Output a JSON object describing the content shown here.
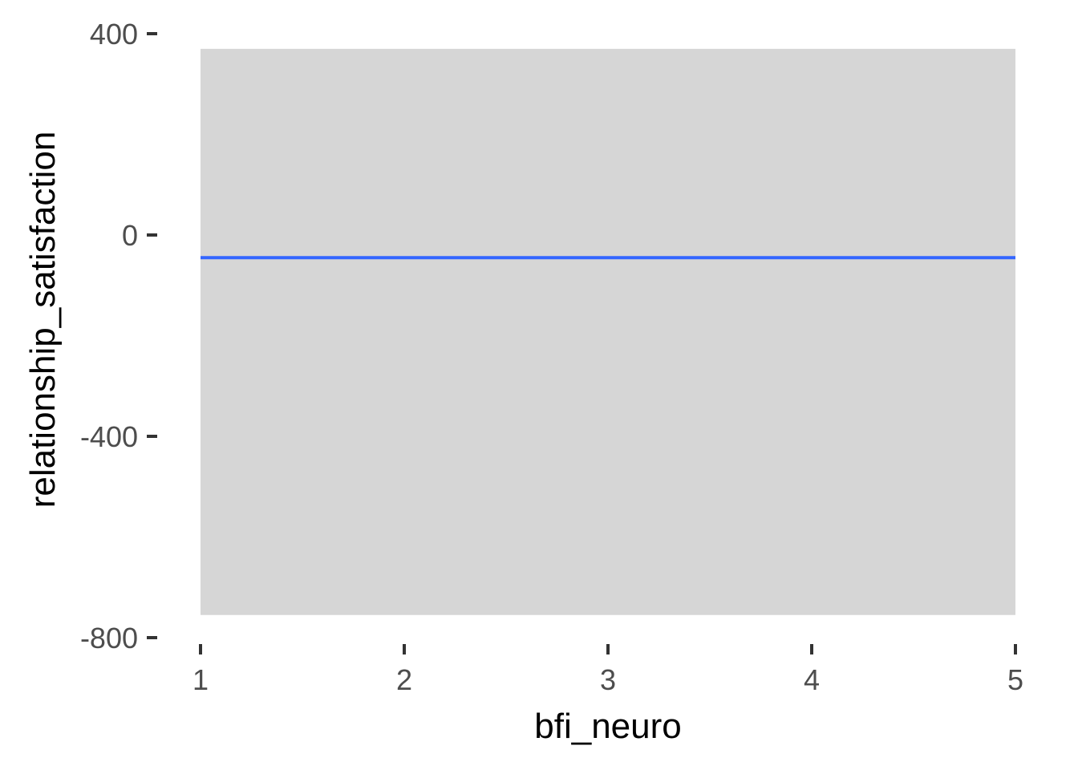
{
  "chart_data": {
    "type": "line",
    "title": "",
    "xlabel": "bfi_neuro",
    "ylabel": "relationship_satisfaction",
    "xlim": [
      1,
      5
    ],
    "ylim": [
      -800,
      400
    ],
    "x_ticks": [
      1,
      2,
      3,
      4,
      5
    ],
    "x_tick_labels": [
      "1",
      "2",
      "3",
      "4",
      "5"
    ],
    "y_ticks": [
      400,
      0,
      -400,
      -800
    ],
    "y_tick_labels": [
      "400",
      "0",
      "-400",
      "-800"
    ],
    "ribbon": {
      "x": [
        1,
        5
      ],
      "lower": [
        -755,
        -755
      ],
      "upper": [
        370,
        370
      ],
      "color": "#d6d6d6"
    },
    "series": [
      {
        "x": [
          1,
          5
        ],
        "values": [
          -45,
          -45
        ],
        "color": "#3366ff"
      }
    ],
    "grid": false,
    "legend": "none"
  }
}
